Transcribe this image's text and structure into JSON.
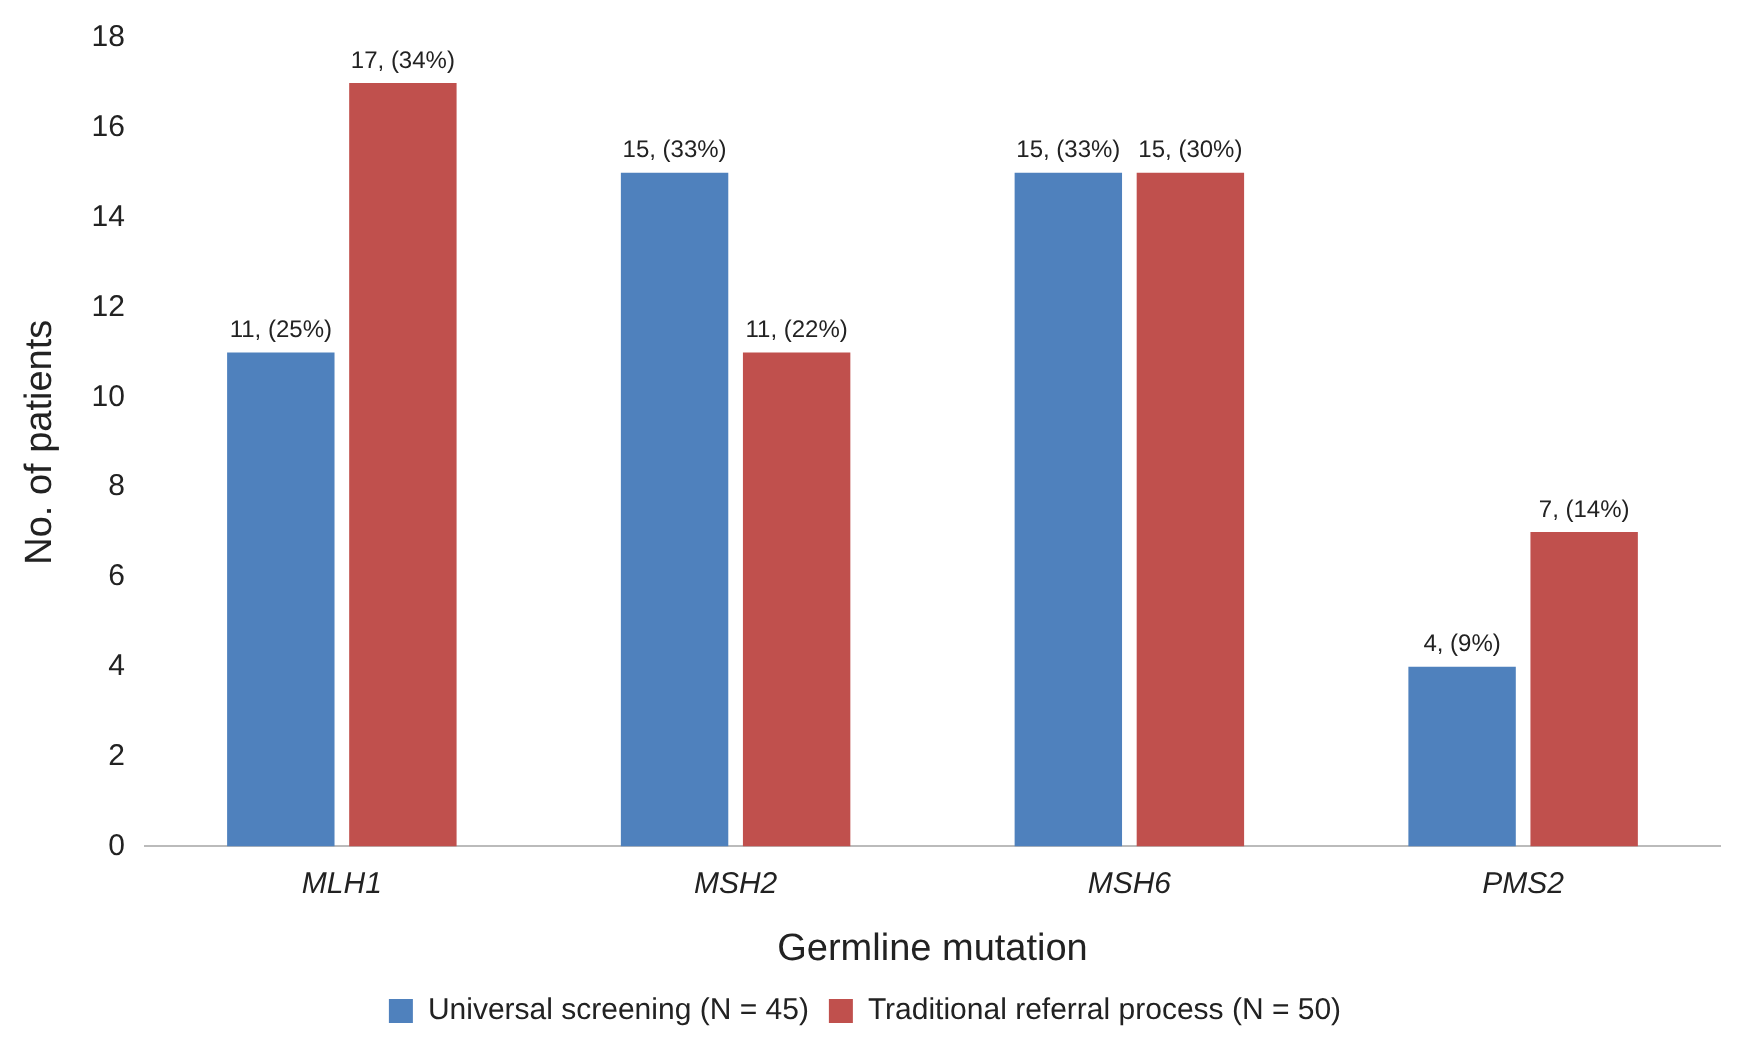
{
  "chart_data": {
    "type": "bar",
    "xlabel": "Germline mutation",
    "ylabel": "No. of patients",
    "categories": [
      "MLH1",
      "MSH2",
      "MSH6",
      "PMS2"
    ],
    "series": [
      {
        "name": "Universal screening (N = 45)",
        "color": "#4f81bd",
        "values": [
          11,
          15,
          15,
          4
        ],
        "value_labels": [
          "11, (25%)",
          "15, (33%)",
          "15, (33%)",
          "4, (9%)"
        ]
      },
      {
        "name": "Traditional referral process (N = 50)",
        "color": "#c0504d",
        "values": [
          17,
          11,
          15,
          7
        ],
        "value_labels": [
          "17, (34%)",
          "11, (22%)",
          "15, (30%)",
          "7, (14%)"
        ]
      }
    ],
    "ylim": [
      0,
      18
    ],
    "yticks": [
      0,
      2,
      4,
      6,
      8,
      10,
      12,
      14,
      16,
      18
    ],
    "grid": false,
    "legend": "bottom"
  }
}
